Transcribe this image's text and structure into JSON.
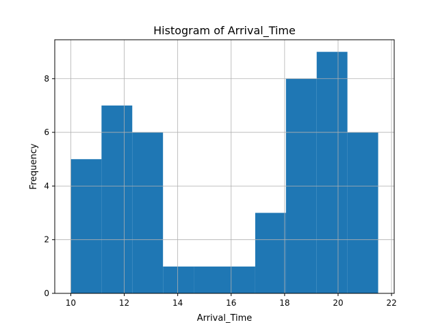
{
  "chart_data": {
    "type": "bar",
    "title": "Histogram of Arrival_Time",
    "xlabel": "Arrival_Time",
    "ylabel": "Frequency",
    "bins": [
      {
        "start": 10.0,
        "end": 11.15,
        "count": 5
      },
      {
        "start": 11.15,
        "end": 12.3,
        "count": 7
      },
      {
        "start": 12.3,
        "end": 13.45,
        "count": 6
      },
      {
        "start": 13.45,
        "end": 14.6,
        "count": 1
      },
      {
        "start": 14.6,
        "end": 15.75,
        "count": 1
      },
      {
        "start": 15.75,
        "end": 16.9,
        "count": 1
      },
      {
        "start": 16.9,
        "end": 18.05,
        "count": 3
      },
      {
        "start": 18.05,
        "end": 19.2,
        "count": 8
      },
      {
        "start": 19.2,
        "end": 20.35,
        "count": 9
      },
      {
        "start": 20.35,
        "end": 21.5,
        "count": 6
      }
    ],
    "xlim": [
      9.4,
      22.1
    ],
    "ylim": [
      0,
      9.45
    ],
    "xticks": [
      10,
      12,
      14,
      16,
      18,
      20,
      22
    ],
    "yticks": [
      0,
      2,
      4,
      6,
      8
    ],
    "grid": true,
    "bar_color": "#1f77b4"
  }
}
